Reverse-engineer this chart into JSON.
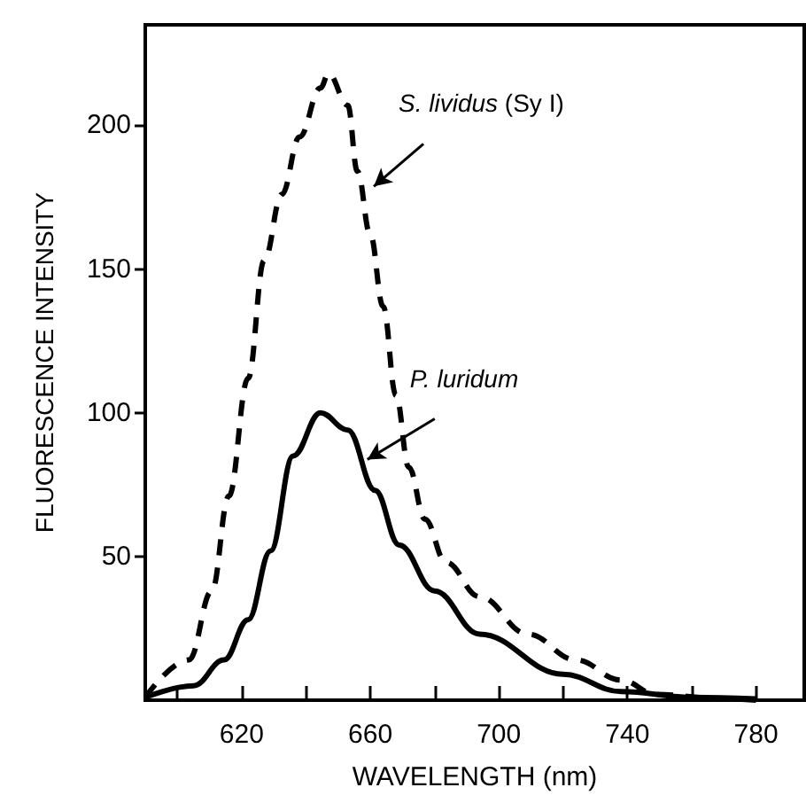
{
  "chart_data": {
    "type": "line",
    "xlabel": "WAVELENGTH (nm)",
    "ylabel": "FLUORESCENCE INTENSITY",
    "xlim": [
      590,
      795
    ],
    "xticks": [
      {
        "value": 600,
        "label": null
      },
      620,
      {
        "value": 640,
        "label": null
      },
      660,
      {
        "value": 680,
        "label": null
      },
      700,
      {
        "value": 720,
        "label": null
      },
      740,
      {
        "value": 760,
        "label": null
      },
      780
    ],
    "ylim": [
      0,
      235
    ],
    "yticks": [
      50,
      100,
      150,
      200
    ],
    "grid": false,
    "marker": "none",
    "series": [
      {
        "color": "#000000",
        "line_style": "dashed",
        "x": [
          590,
          603.6,
          610.7,
          616,
          622,
          627,
          632.5,
          638,
          644.5,
          647,
          653,
          656,
          660,
          664,
          668,
          672,
          677,
          683.5,
          694,
          709,
          724,
          738,
          749,
          770,
          780
        ],
        "values": [
          1,
          14,
          38,
          71,
          112,
          153,
          176,
          196,
          213,
          218,
          207,
          184,
          162,
          137,
          106,
          81,
          63,
          48,
          36,
          23,
          14,
          7,
          2,
          0.5,
          0
        ]
      },
      {
        "color": "#000000",
        "line_style": "solid",
        "x": [
          590,
          605,
          614.5,
          622,
          629,
          636,
          644.5,
          653,
          661.5,
          669,
          680,
          694,
          720,
          738,
          760,
          780
        ],
        "values": [
          1,
          5,
          14,
          28,
          52,
          85,
          100,
          94,
          73,
          54,
          38,
          23,
          9,
          3,
          1,
          0.5
        ]
      }
    ],
    "annotations": [
      {
        "text": "S. lividus (Sy I)",
        "x": 660,
        "y": 180
      },
      {
        "text": "P. luridum",
        "x": 658,
        "y": 85
      }
    ]
  }
}
